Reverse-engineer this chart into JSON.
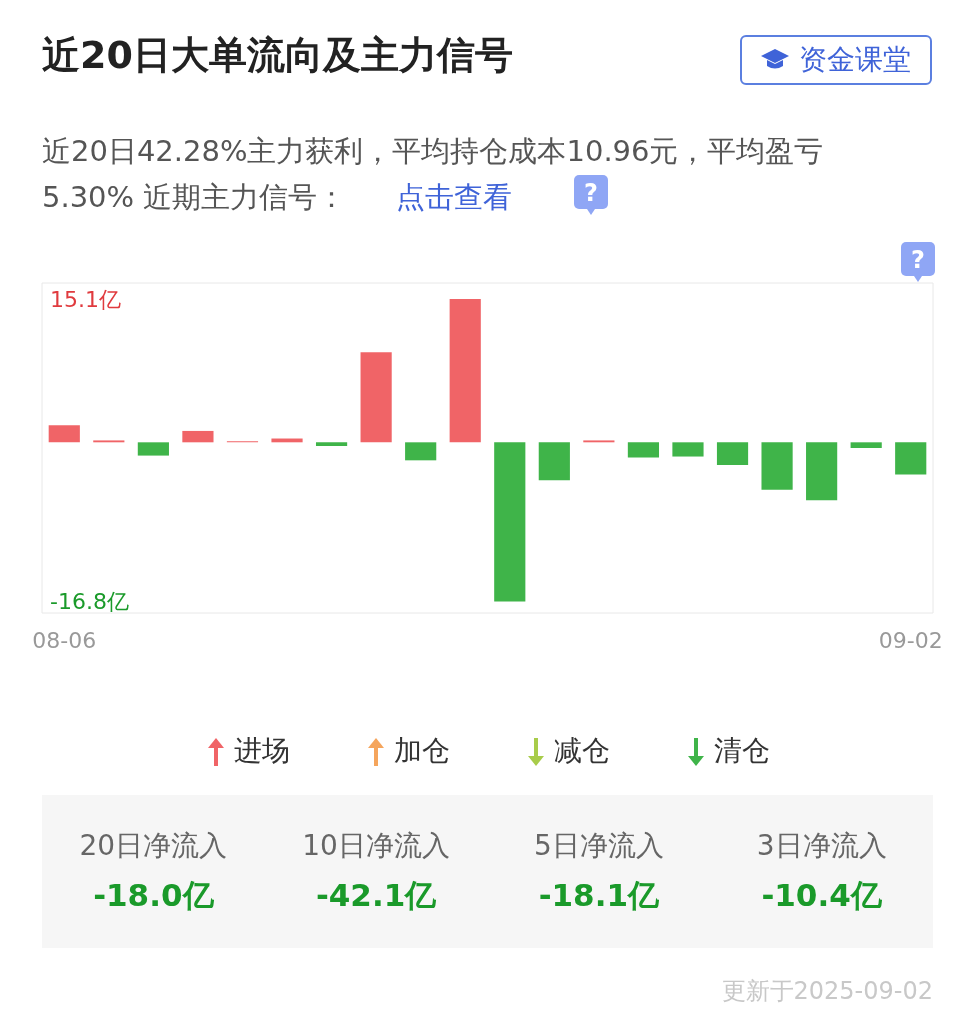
{
  "chart_data": {
    "type": "bar",
    "title": "近20日大单流向及主力信号",
    "subtitle": "近20日42.28%主力获利，平均持仓成本10.96元，平均盈亏5.30% 近期主力信号：",
    "categories": [
      "08-06",
      null,
      null,
      null,
      null,
      null,
      null,
      null,
      null,
      null,
      null,
      null,
      null,
      null,
      null,
      null,
      null,
      null,
      null,
      "09-02"
    ],
    "values": [
      1.8,
      0.2,
      -1.4,
      1.2,
      0.1,
      0.4,
      -0.4,
      9.5,
      -1.9,
      15.1,
      -16.8,
      -4.0,
      0.2,
      -1.6,
      -1.5,
      -2.4,
      -5.0,
      -6.1,
      -0.6,
      -3.4
    ],
    "colors": [
      "#f06467",
      "#f06467",
      "#3fb449",
      "#f06467",
      "#f06467",
      "#f06467",
      "#3fb449",
      "#f06467",
      "#3fb449",
      "#f06467",
      "#3fb449",
      "#3fb449",
      "#f06467",
      "#3fb449",
      "#3fb449",
      "#3fb449",
      "#3fb449",
      "#3fb449",
      "#3fb449",
      "#3fb449"
    ],
    "ylim": [
      -18,
      16.8
    ],
    "yticks": [
      {
        "value": 15.1,
        "label": "15.1亿"
      },
      {
        "value": -16.8,
        "label": "-16.8亿"
      }
    ],
    "grid": false,
    "annotations": [
      "资金课堂",
      "点击查看",
      "进场",
      "加仓",
      "减仓",
      "清仓",
      "20日净流入",
      "-18.0亿",
      "10日净流入",
      "-42.1亿",
      "5日净流入",
      "-18.1亿",
      "3日净流入",
      "-10.4亿",
      "更新于2025-09-02",
      "?",
      "?"
    ]
  }
}
